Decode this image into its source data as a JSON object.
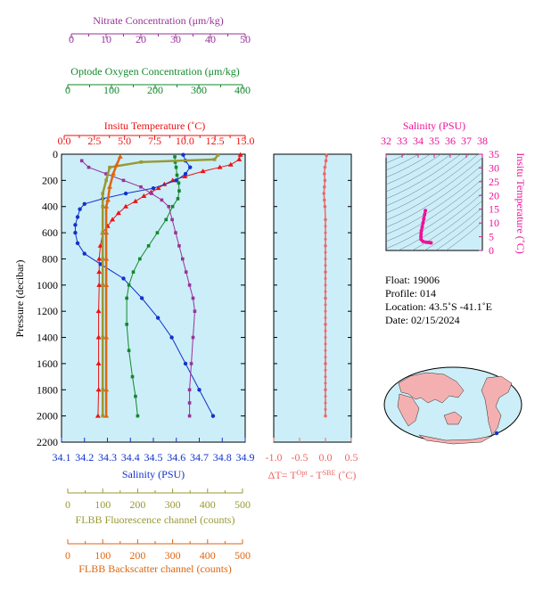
{
  "colors": {
    "nitrate": "#993399",
    "oxygen": "#11882b",
    "temperature": "#ee1111",
    "salinity": "#1133cc",
    "fluorescence": "#999933",
    "backscatter": "#dd6611",
    "delta": "#ee6666",
    "ts": "#ee1199",
    "plot_bg": "#cceef8",
    "text": "#000000"
  },
  "axes": {
    "nitrate": {
      "label": "Nitrate Concentration (μm/kg)",
      "ticks": [
        "0",
        "10",
        "20",
        "30",
        "40",
        "50"
      ],
      "range": [
        0,
        50
      ]
    },
    "oxygen": {
      "label": "Optode Oxygen Concentration (μm/kg)",
      "ticks": [
        "0",
        "100",
        "200",
        "300",
        "400"
      ],
      "range": [
        0,
        400
      ]
    },
    "temperature": {
      "label": "Insitu Temperature (˚C)",
      "ticks": [
        "0.0",
        "2.5",
        "5.0",
        "7.5",
        "10.0",
        "12.5",
        "15.0"
      ],
      "range": [
        0,
        15
      ]
    },
    "salinity": {
      "label": "Salinity (PSU)",
      "ticks": [
        "34.1",
        "34.2",
        "34.3",
        "34.4",
        "34.5",
        "34.6",
        "34.7",
        "34.8",
        "34.9"
      ],
      "range": [
        34.1,
        34.9
      ]
    },
    "pressure": {
      "label": "Pressure (decibar)",
      "ticks": [
        "0",
        "200",
        "400",
        "600",
        "800",
        "1000",
        "1200",
        "1400",
        "1600",
        "1800",
        "2000",
        "2200"
      ],
      "range": [
        0,
        2200
      ]
    },
    "fluorescence": {
      "label": "FLBB Fluorescence channel (counts)",
      "ticks": [
        "0",
        "100",
        "200",
        "300",
        "400",
        "500"
      ],
      "range": [
        0,
        500
      ]
    },
    "backscatter": {
      "label": "FLBB Backscatter channel (counts)",
      "ticks": [
        "0",
        "100",
        "200",
        "300",
        "400",
        "500"
      ],
      "range": [
        0,
        500
      ]
    },
    "delta": {
      "label_prefix": "ΔT= T",
      "label_sup1": "Opt",
      "label_mid": " - T",
      "label_sup2": "SBE",
      "label_suffix": " (˚C)",
      "ticks": [
        "-1.0",
        "-0.5",
        "0.0",
        "0.5"
      ],
      "range": [
        -1.0,
        0.5
      ]
    },
    "ts_salinity": {
      "label": "Salinity (PSU)",
      "ticks": [
        "32",
        "33",
        "34",
        "35",
        "36",
        "37",
        "38"
      ],
      "range": [
        32,
        38
      ]
    },
    "ts_temperature": {
      "label": "Insitu Temperature (˚C)",
      "ticks": [
        "0",
        "5",
        "10",
        "15",
        "20",
        "25",
        "30",
        "35"
      ],
      "range": [
        0,
        35
      ]
    }
  },
  "info": {
    "float": "Float:  19006",
    "profile": "Profile:  014",
    "location": "Location:  43.5˚S  -41.1˚E",
    "date": "Date:  02/15/2024"
  },
  "chart_data": [
    {
      "type": "line",
      "title": "",
      "ylabel": "Pressure (decibar)",
      "ylim": [
        2200,
        0
      ],
      "series": [
        {
          "name": "Insitu Temperature",
          "axis": "temperature",
          "x": [
            14.6,
            14.5,
            13.8,
            12.9,
            11.5,
            10.0,
            9.0,
            8.3,
            7.8,
            7.2,
            6.6,
            5.9,
            5.1,
            4.5,
            4.0,
            3.6,
            3.2,
            3.0,
            2.9,
            2.9,
            2.9,
            2.85,
            2.85,
            2.85,
            2.85,
            2.8
          ],
          "y": [
            5,
            40,
            80,
            100,
            130,
            170,
            200,
            230,
            260,
            290,
            320,
            360,
            400,
            450,
            500,
            550,
            600,
            700,
            800,
            900,
            1000,
            1200,
            1400,
            1600,
            1800,
            2000
          ]
        },
        {
          "name": "Salinity",
          "axis": "salinity",
          "x": [
            34.63,
            34.64,
            34.66,
            34.64,
            34.6,
            34.5,
            34.38,
            34.28,
            34.2,
            34.18,
            34.17,
            34.16,
            34.16,
            34.17,
            34.2,
            34.27,
            34.37,
            34.45,
            34.52,
            34.58,
            34.64,
            34.7,
            34.76
          ],
          "y": [
            5,
            50,
            100,
            150,
            200,
            260,
            300,
            340,
            380,
            420,
            480,
            540,
            600,
            680,
            760,
            840,
            950,
            1100,
            1250,
            1400,
            1600,
            1800,
            2000
          ]
        },
        {
          "name": "Nitrate",
          "axis": "nitrate",
          "x": [
            3,
            5,
            10,
            15,
            20,
            23,
            26,
            28,
            29,
            30,
            31,
            32,
            33,
            34,
            35,
            35.5,
            35,
            34.5,
            34,
            34,
            34
          ],
          "y": [
            50,
            100,
            150,
            200,
            250,
            300,
            350,
            400,
            500,
            600,
            700,
            800,
            900,
            1000,
            1100,
            1200,
            1400,
            1600,
            1800,
            1900,
            2000
          ]
        },
        {
          "name": "Optode Oxygen",
          "axis": "oxygen",
          "x": [
            245,
            246,
            248,
            250,
            254,
            255,
            252,
            240,
            225,
            205,
            185,
            165,
            150,
            140,
            135,
            135,
            140,
            148,
            155,
            160
          ],
          "y": [
            20,
            60,
            100,
            160,
            220,
            280,
            340,
            400,
            500,
            600,
            700,
            800,
            900,
            1000,
            1100,
            1300,
            1500,
            1700,
            1850,
            2000
          ]
        },
        {
          "name": "FLBB Fluorescence",
          "axis": "fluorescence",
          "x": [
            430,
            420,
            210,
            120,
            110,
            100,
            100,
            100,
            100,
            100,
            100,
            100,
            100
          ],
          "y": [
            5,
            40,
            60,
            100,
            200,
            300,
            400,
            600,
            800,
            1000,
            1400,
            1800,
            2000
          ]
        },
        {
          "name": "FLBB Backscatter",
          "axis": "backscatter",
          "x": [
            150,
            140,
            130,
            120,
            115,
            110,
            110,
            110,
            110,
            110,
            110,
            110
          ],
          "y": [
            20,
            80,
            150,
            250,
            350,
            400,
            600,
            800,
            1000,
            1400,
            1800,
            2000
          ]
        }
      ]
    },
    {
      "type": "line",
      "title": "",
      "xlabel": "ΔT= T Opt - T SBE (˚C)",
      "ylim": [
        2200,
        0
      ],
      "xlim": [
        -1.0,
        0.5
      ],
      "series": [
        {
          "name": "ΔT",
          "x": [
            0.02,
            0.01,
            -0.01,
            -0.02,
            -0.01,
            -0.02,
            -0.03,
            -0.02,
            -0.01,
            0.0,
            0.0,
            0.0,
            0.0,
            0.0,
            0.0,
            0.0,
            0.0
          ],
          "y": [
            10,
            50,
            100,
            150,
            200,
            250,
            300,
            350,
            400,
            500,
            700,
            900,
            1100,
            1300,
            1600,
            1800,
            2000
          ]
        }
      ]
    },
    {
      "type": "scatter",
      "title": "",
      "xlabel": "Salinity (PSU)",
      "ylabel": "Insitu Temperature (˚C)",
      "xlim": [
        32,
        38
      ],
      "ylim": [
        0,
        35
      ],
      "series": [
        {
          "name": "T-S",
          "x": [
            34.45,
            34.4,
            34.35,
            34.3,
            34.25,
            34.2,
            34.18,
            34.17,
            34.18,
            34.3,
            34.5,
            34.64,
            34.75,
            34.8
          ],
          "y": [
            14.5,
            13.0,
            11.5,
            10.0,
            8.5,
            7.2,
            6.0,
            5.0,
            4.0,
            3.3,
            3.0,
            2.9,
            2.85,
            2.8
          ]
        }
      ]
    }
  ]
}
